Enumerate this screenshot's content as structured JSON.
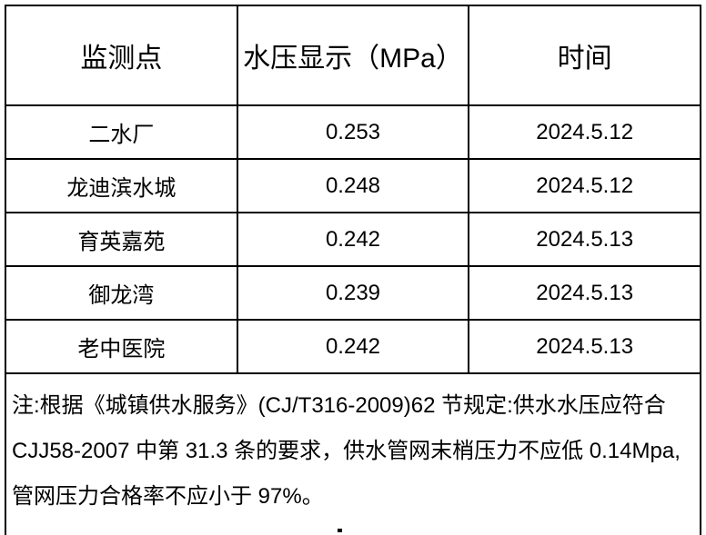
{
  "colors": {
    "border": "#000000",
    "text": "#000000",
    "background": "#ffffff"
  },
  "table": {
    "columns": {
      "point": "监测点",
      "pressure": "水压显示（MPa）",
      "time": "时间"
    },
    "rows": [
      {
        "point": "二水厂",
        "pressure": "0.253",
        "date": "2024.5.12"
      },
      {
        "point": "龙迪滨水城",
        "pressure": "0.248",
        "date": "2024.5.12"
      },
      {
        "point": "育英嘉苑",
        "pressure": "0.242",
        "date": "2024.5.13"
      },
      {
        "point": "御龙湾",
        "pressure": "0.239",
        "date": "2024.5.13"
      },
      {
        "point": "老中医院",
        "pressure": "0.242",
        "date": "2024.5.13"
      }
    ],
    "note": {
      "lines": [
        "注:根据《城镇供水服务》(CJ/T316-2009)62 节规定:供水水压应符合",
        "CJJ58-2007 中第 31.3 条的要求，供水管网末梢压力不应低 0.14Mpa,",
        "管网压力合格率不应小于 97%。"
      ]
    }
  }
}
